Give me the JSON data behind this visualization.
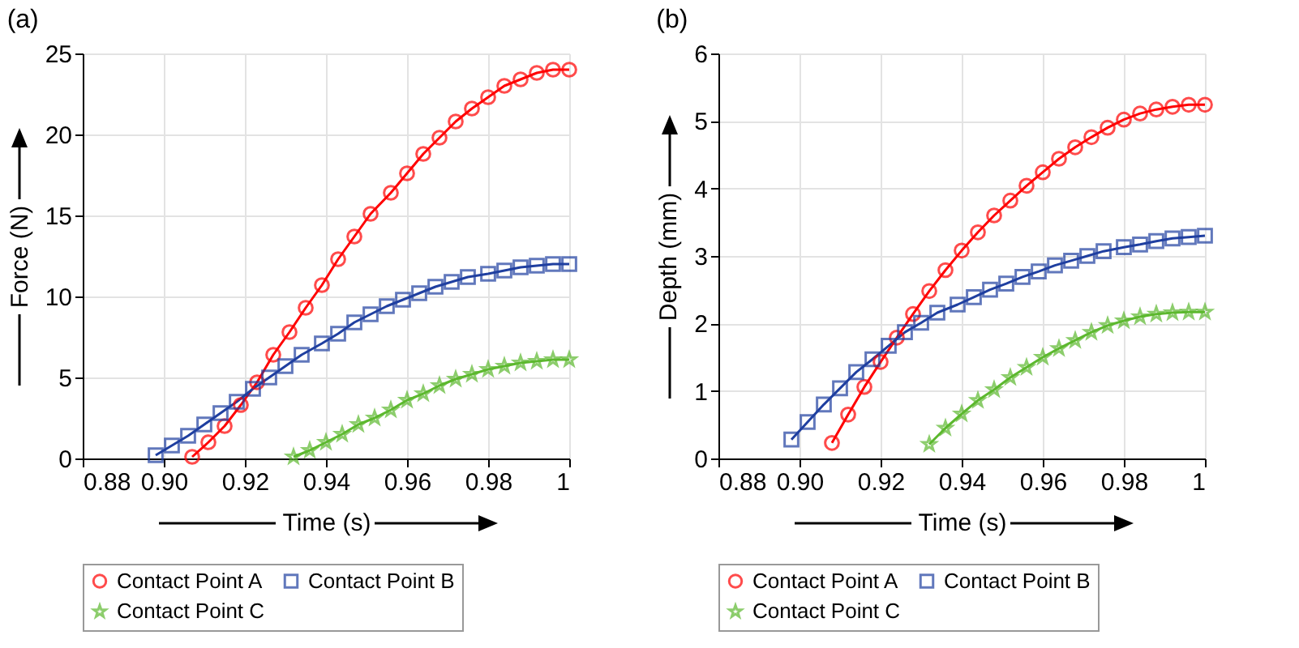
{
  "chart_data": [
    {
      "type": "line",
      "title": "(a)",
      "xlabel": "Time (s)",
      "ylabel": "Force (N)",
      "xlim": [
        0.88,
        1
      ],
      "ylim": [
        0,
        25
      ],
      "xticks": [
        {
          "value": 0.88,
          "label": "0.88"
        },
        {
          "value": 0.9,
          "label": "0.90"
        },
        {
          "value": 0.92,
          "label": "0.92"
        },
        {
          "value": 0.94,
          "label": "0.94"
        },
        {
          "value": 0.96,
          "label": "0.96"
        },
        {
          "value": 0.98,
          "label": "0.98"
        },
        1
      ],
      "yticks": [
        0,
        5,
        10,
        15,
        20,
        25
      ],
      "grid": true,
      "legend": "bottom",
      "series": [
        {
          "name": "Contact Point A",
          "color": "#ff0000",
          "marker": "circle",
          "x": [
            0.907,
            0.911,
            0.915,
            0.919,
            0.923,
            0.927,
            0.931,
            0.935,
            0.939,
            0.943,
            0.947,
            0.951,
            0.956,
            0.96,
            0.964,
            0.968,
            0.972,
            0.976,
            0.98,
            0.984,
            0.988,
            0.992,
            0.996,
            1.0
          ],
          "values": [
            0.1,
            1.0,
            2.0,
            3.3,
            4.7,
            6.4,
            7.8,
            9.3,
            10.7,
            12.3,
            13.7,
            15.1,
            16.4,
            17.6,
            18.8,
            19.8,
            20.8,
            21.6,
            22.3,
            23.0,
            23.4,
            23.8,
            24.0,
            24.0
          ]
        },
        {
          "name": "Contact Point B",
          "color": "#1f3fa0",
          "marker": "square",
          "x": [
            0.898,
            0.902,
            0.906,
            0.91,
            0.914,
            0.918,
            0.922,
            0.926,
            0.93,
            0.934,
            0.939,
            0.943,
            0.947,
            0.951,
            0.955,
            0.959,
            0.963,
            0.967,
            0.971,
            0.975,
            0.98,
            0.984,
            0.988,
            0.992,
            0.996,
            1.0
          ],
          "values": [
            0.2,
            0.8,
            1.4,
            2.1,
            2.8,
            3.5,
            4.3,
            5.0,
            5.7,
            6.4,
            7.1,
            7.7,
            8.4,
            8.9,
            9.4,
            9.8,
            10.2,
            10.6,
            10.9,
            11.2,
            11.4,
            11.6,
            11.8,
            11.9,
            12.0,
            12.0
          ]
        },
        {
          "name": "Contact Point C",
          "color": "#5cb82e",
          "marker": "star",
          "x": [
            0.932,
            0.936,
            0.94,
            0.944,
            0.948,
            0.952,
            0.956,
            0.96,
            0.964,
            0.968,
            0.972,
            0.976,
            0.98,
            0.984,
            0.988,
            0.992,
            0.996,
            1.0
          ],
          "values": [
            0.1,
            0.5,
            1.0,
            1.5,
            2.1,
            2.5,
            3.0,
            3.6,
            4.0,
            4.5,
            4.9,
            5.2,
            5.5,
            5.7,
            5.9,
            6.0,
            6.1,
            6.1
          ]
        }
      ]
    },
    {
      "type": "line",
      "title": "(b)",
      "xlabel": "Time (s)",
      "ylabel": "Depth (mm)",
      "xlim": [
        0.88,
        1
      ],
      "ylim": [
        0,
        6
      ],
      "xticks": [
        {
          "value": 0.88,
          "label": "0.88"
        },
        {
          "value": 0.9,
          "label": "0.90"
        },
        {
          "value": 0.92,
          "label": "0.92"
        },
        {
          "value": 0.94,
          "label": "0.94"
        },
        {
          "value": 0.96,
          "label": "0.96"
        },
        {
          "value": 0.98,
          "label": "0.98"
        },
        1
      ],
      "yticks": [
        0,
        1,
        2,
        3,
        4,
        5,
        6
      ],
      "grid": true,
      "legend": "bottom",
      "series": [
        {
          "name": "Contact Point A",
          "color": "#ff0000",
          "marker": "circle",
          "x": [
            0.908,
            0.912,
            0.916,
            0.92,
            0.924,
            0.928,
            0.932,
            0.936,
            0.94,
            0.944,
            0.948,
            0.952,
            0.956,
            0.96,
            0.964,
            0.968,
            0.972,
            0.976,
            0.98,
            0.984,
            0.988,
            0.992,
            0.996,
            1.0
          ],
          "values": [
            0.23,
            0.65,
            1.06,
            1.43,
            1.79,
            2.14,
            2.48,
            2.79,
            3.08,
            3.35,
            3.6,
            3.82,
            4.04,
            4.24,
            4.44,
            4.61,
            4.76,
            4.9,
            5.02,
            5.11,
            5.17,
            5.21,
            5.24,
            5.24
          ]
        },
        {
          "name": "Contact Point B",
          "color": "#1f3fa0",
          "marker": "square",
          "x": [
            0.898,
            0.902,
            0.906,
            0.91,
            0.914,
            0.918,
            0.922,
            0.926,
            0.93,
            0.934,
            0.939,
            0.943,
            0.947,
            0.951,
            0.955,
            0.959,
            0.963,
            0.967,
            0.971,
            0.975,
            0.98,
            0.984,
            0.988,
            0.992,
            0.996,
            1.0
          ],
          "values": [
            0.28,
            0.54,
            0.8,
            1.04,
            1.28,
            1.47,
            1.67,
            1.87,
            2.01,
            2.16,
            2.28,
            2.39,
            2.5,
            2.59,
            2.69,
            2.77,
            2.86,
            2.93,
            3.0,
            3.07,
            3.13,
            3.17,
            3.22,
            3.26,
            3.28,
            3.3
          ]
        },
        {
          "name": "Contact Point C",
          "color": "#5cb82e",
          "marker": "star",
          "x": [
            0.932,
            0.936,
            0.94,
            0.944,
            0.948,
            0.952,
            0.956,
            0.96,
            0.964,
            0.968,
            0.972,
            0.976,
            0.98,
            0.984,
            0.988,
            0.992,
            0.996,
            1.0
          ],
          "values": [
            0.21,
            0.45,
            0.66,
            0.86,
            1.02,
            1.2,
            1.35,
            1.5,
            1.63,
            1.75,
            1.87,
            1.97,
            2.04,
            2.1,
            2.14,
            2.16,
            2.17,
            2.17
          ]
        }
      ]
    }
  ]
}
